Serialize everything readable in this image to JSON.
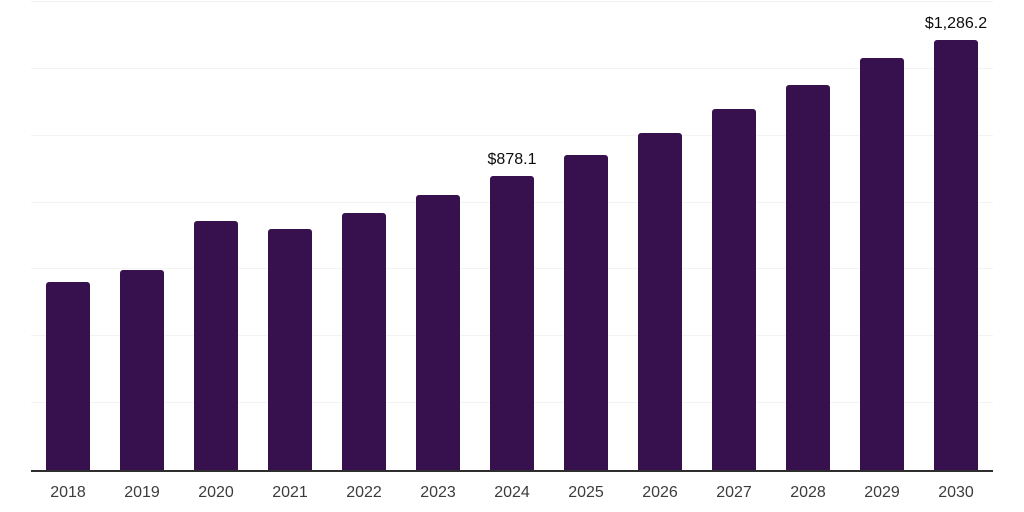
{
  "chart_data": {
    "type": "bar",
    "title": "",
    "xlabel": "",
    "ylabel": "",
    "legend_position": "none",
    "grid": "horizontal gridlines, no y tick labels",
    "ylim": [
      0,
      1400
    ],
    "grid_step": 200,
    "categories": [
      "2018",
      "2019",
      "2020",
      "2021",
      "2022",
      "2023",
      "2024",
      "2025",
      "2026",
      "2027",
      "2028",
      "2029",
      "2030"
    ],
    "values": [
      562,
      599,
      744,
      720,
      768,
      822,
      878.1,
      941,
      1009,
      1079,
      1153,
      1232,
      1286.2
    ],
    "value_labels": [
      "",
      "",
      "",
      "",
      "",
      "",
      "$878.1",
      "",
      "",
      "",
      "",
      "",
      "$1,286.2"
    ]
  },
  "style": {
    "background": "#FFFFFF",
    "bar_color": "#36114E",
    "gridline_color": "#F3F3F3",
    "axis_color": "#2E2E2E",
    "category_label_color": "#3C3C3C",
    "value_label_color": "#0D0D0D"
  }
}
